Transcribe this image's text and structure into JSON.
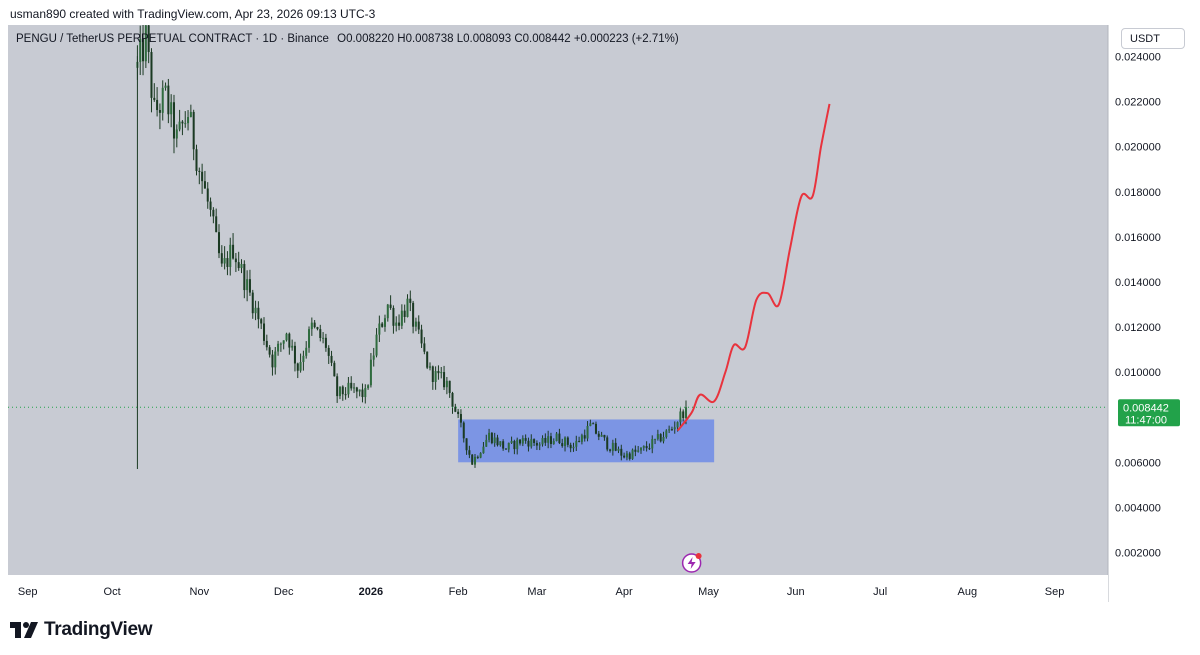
{
  "header": {
    "created_by": "usman890 created with TradingView.com, Apr 23, 2026 09:13 UTC-3"
  },
  "symbol": {
    "name": "PENGU / TetherUS PERPETUAL CONTRACT · 1D · Binance",
    "open_label": "O",
    "open": "0.008220",
    "high_label": "H",
    "high": "0.008738",
    "low_label": "L",
    "low": "0.008093",
    "close_label": "C",
    "close": "0.008442",
    "change": "+0.000223 (+2.71%)"
  },
  "currency": "USDT",
  "price_label": {
    "price": "0.008442",
    "countdown": "11:47:00"
  },
  "footer": {
    "brand": "TradingView"
  },
  "colors": {
    "plot_bg": "#c8cbd3",
    "candle": "#1b3a23",
    "projection": "#e8333d",
    "box": "#6e8ce6",
    "price_label": "#22a24a"
  },
  "icons": {
    "lightning": "lightning-icon",
    "logo": "tradingview-logo-icon"
  },
  "chart_data": {
    "type": "candlestick",
    "y_axis": {
      "ticks": [
        "0.024000",
        "0.022000",
        "0.020000",
        "0.018000",
        "0.016000",
        "0.014000",
        "0.012000",
        "0.010000",
        "0.006000",
        "0.004000",
        "0.002000"
      ],
      "range": [
        0.001,
        0.0254
      ]
    },
    "x_axis": {
      "ticks": [
        "Sep",
        "Oct",
        "Nov",
        "Dec",
        "2026",
        "Feb",
        "Mar",
        "Apr",
        "May",
        "Jun",
        "Jul",
        "Aug",
        "Sep"
      ],
      "bold": [
        "2026"
      ],
      "range": [
        "2025-08-25",
        "2026-09-20"
      ]
    },
    "last_price": 0.008442,
    "candles": {
      "first_date": "2025-10-10",
      "interval": "1D",
      "spike": {
        "date": "2025-10-10",
        "low": 0.0057
      },
      "close_path": [
        [
          "2025-10-10",
          0.0235
        ],
        [
          "2025-10-13",
          0.0248
        ],
        [
          "2025-10-16",
          0.0215
        ],
        [
          "2025-10-20",
          0.0222
        ],
        [
          "2025-10-24",
          0.0203
        ],
        [
          "2025-10-28",
          0.0215
        ],
        [
          "2025-11-01",
          0.019
        ],
        [
          "2025-11-05",
          0.017
        ],
        [
          "2025-11-09",
          0.0145
        ],
        [
          "2025-11-13",
          0.0155
        ],
        [
          "2025-11-18",
          0.0138
        ],
        [
          "2025-11-23",
          0.012
        ],
        [
          "2025-11-27",
          0.0105
        ],
        [
          "2025-12-02",
          0.0118
        ],
        [
          "2025-12-06",
          0.0102
        ],
        [
          "2025-12-11",
          0.012
        ],
        [
          "2025-12-16",
          0.0112
        ],
        [
          "2025-12-20",
          0.009
        ],
        [
          "2025-12-24",
          0.0092
        ],
        [
          "2025-12-30",
          0.009
        ],
        [
          "2026-01-03",
          0.0115
        ],
        [
          "2026-01-07",
          0.013
        ],
        [
          "2026-01-10",
          0.0122
        ],
        [
          "2026-01-14",
          0.013
        ],
        [
          "2026-01-18",
          0.0115
        ],
        [
          "2026-01-22",
          0.01
        ],
        [
          "2026-01-28",
          0.0095
        ],
        [
          "2026-02-02",
          0.0075
        ],
        [
          "2026-02-06",
          0.006
        ],
        [
          "2026-02-12",
          0.0072
        ],
        [
          "2026-02-18",
          0.0066
        ],
        [
          "2026-02-24",
          0.007
        ],
        [
          "2026-03-02",
          0.0068
        ],
        [
          "2026-03-08",
          0.0071
        ],
        [
          "2026-03-14",
          0.0067
        ],
        [
          "2026-03-20",
          0.0076
        ],
        [
          "2026-03-26",
          0.0068
        ],
        [
          "2026-04-01",
          0.0063
        ],
        [
          "2026-04-07",
          0.0065
        ],
        [
          "2026-04-13",
          0.007
        ],
        [
          "2026-04-18",
          0.0075
        ],
        [
          "2026-04-23",
          0.008442
        ]
      ]
    },
    "annotations": {
      "range_box": {
        "x0": "2026-02-01",
        "x1": "2026-05-03",
        "y0": 0.006,
        "y1": 0.0079
      },
      "projection": [
        [
          "2026-04-20",
          0.0074
        ],
        [
          "2026-04-25",
          0.0082
        ],
        [
          "2026-04-28",
          0.009
        ],
        [
          "2026-05-03",
          0.0087
        ],
        [
          "2026-05-07",
          0.01
        ],
        [
          "2026-05-10",
          0.0112
        ],
        [
          "2026-05-14",
          0.0111
        ],
        [
          "2026-05-18",
          0.0132
        ],
        [
          "2026-05-22",
          0.0135
        ],
        [
          "2026-05-26",
          0.013
        ],
        [
          "2026-05-30",
          0.0155
        ],
        [
          "2026-06-03",
          0.0178
        ],
        [
          "2026-06-07",
          0.0178
        ],
        [
          "2026-06-10",
          0.02
        ],
        [
          "2026-06-13",
          0.0219
        ]
      ]
    }
  }
}
